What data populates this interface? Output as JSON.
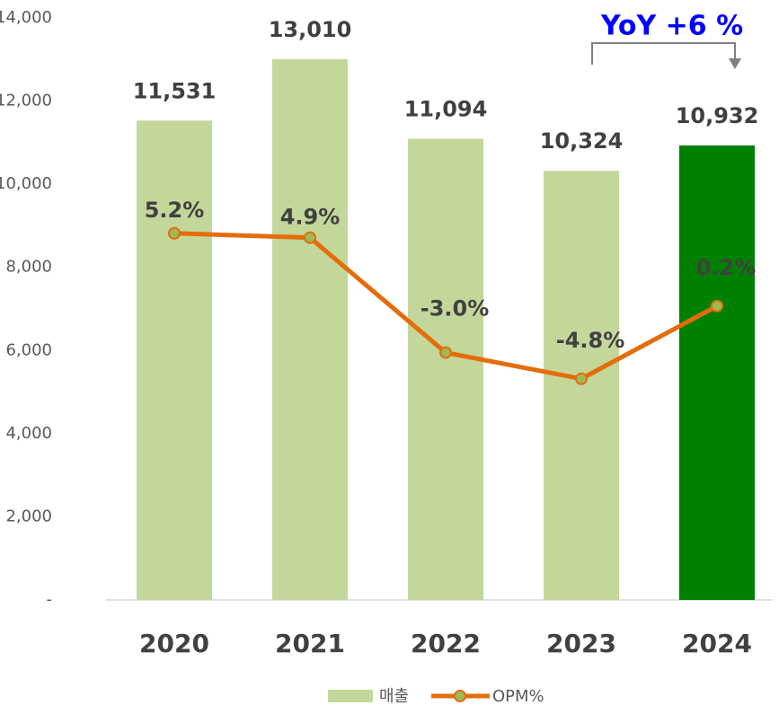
{
  "chart_data": {
    "type": "bar",
    "annotation": "YoY +6 %",
    "categories": [
      "2020",
      "2021",
      "2022",
      "2023",
      "2024"
    ],
    "series": [
      {
        "name": "매출",
        "type": "bar",
        "color": "#c4d79b",
        "colors": [
          "#c4d79b",
          "#c4d79b",
          "#c4d79b",
          "#c4d79b",
          "#008000"
        ],
        "values": [
          11531,
          13010,
          11094,
          10324,
          10932
        ],
        "value_labels": [
          "11,531",
          "13,010",
          "11,094",
          "10,324",
          "10,932"
        ]
      },
      {
        "name": "OPM%",
        "type": "line",
        "axis": "y2",
        "color": "#e46c0a",
        "marker_color": "#9bbb59",
        "values": [
          5.2,
          4.9,
          -3.0,
          -4.8,
          0.2
        ],
        "value_labels": [
          "5.2%",
          "4.9%",
          "-3.0%",
          "-4.8%",
          "0.2%"
        ]
      }
    ],
    "ylim": [
      0,
      14000
    ],
    "yticks": [
      {
        "value": 0,
        "label": "-"
      },
      {
        "value": 2000,
        "label": "2,000"
      },
      {
        "value": 4000,
        "label": "4,000"
      },
      {
        "value": 6000,
        "label": "6,000"
      },
      {
        "value": 8000,
        "label": "8,000"
      },
      {
        "value": 10000,
        "label": "10,000"
      },
      {
        "value": 12000,
        "label": "12,000"
      },
      {
        "value": 14000,
        "label": "14,000"
      }
    ],
    "y2lim": [
      -20,
      20
    ],
    "grid": false
  }
}
